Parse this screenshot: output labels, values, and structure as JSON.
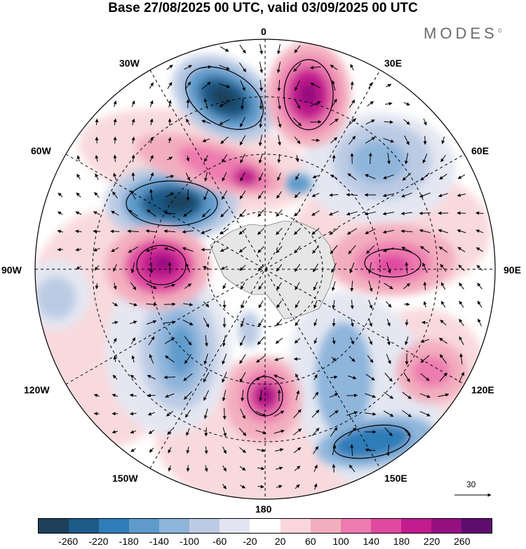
{
  "title": "Base 27/08/2025 00 UTC, valid 03/09/2025 00 UTC",
  "brand": "MODES",
  "brand_mark": "©",
  "longitude_labels": {
    "lon_0": "0",
    "lon_30e": "30E",
    "lon_60e": "60E",
    "lon_90e": "90E",
    "lon_120e": "120E",
    "lon_150e": "150E",
    "lon_180": "180",
    "lon_150w": "150W",
    "lon_120w": "120W",
    "lon_90w": "90W",
    "lon_60w": "60W",
    "lon_30w": "30W"
  },
  "reference_vector": "30",
  "colorbar": {
    "colors": [
      "#1e3f5a",
      "#1c5a87",
      "#2f7db8",
      "#5e9bcc",
      "#8fb5db",
      "#bccbe4",
      "#e2e5f1",
      "#ffffff",
      "#f9d6d9",
      "#f3aebe",
      "#ed7bb0",
      "#df4aa0",
      "#c31c8e",
      "#950f80",
      "#5e0d6e"
    ],
    "tick_labels": [
      "-260",
      "-220",
      "-180",
      "-140",
      "-100",
      "-60",
      "-20",
      "20",
      "60",
      "100",
      "140",
      "180",
      "220",
      "260"
    ]
  }
}
